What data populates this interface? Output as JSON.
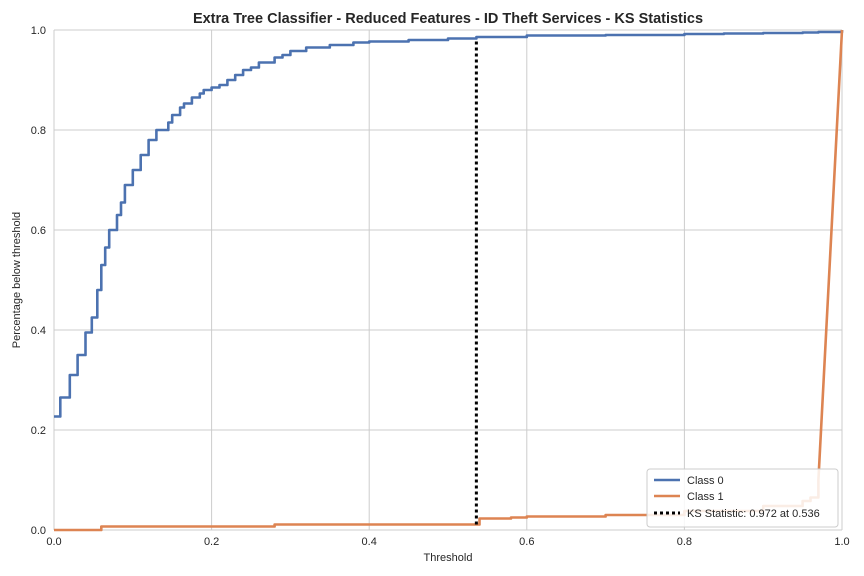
{
  "chart_data": {
    "type": "line",
    "title": "Extra Tree Classifier - Reduced Features - ID Theft Services - KS Statistics",
    "xlabel": "Threshold",
    "ylabel": "Percentage below threshold",
    "xlim": [
      0.0,
      1.0
    ],
    "ylim": [
      0.0,
      1.0
    ],
    "xticks": [
      "0.0",
      "0.2",
      "0.4",
      "0.6",
      "0.8",
      "1.0"
    ],
    "yticks": [
      "0.0",
      "0.2",
      "0.4",
      "0.6",
      "0.8",
      "1.0"
    ],
    "grid": true,
    "legend_position": "bottom-right",
    "series": [
      {
        "name": "Class 0",
        "color": "#4c72b0",
        "style": "step",
        "x": [
          0.0,
          0.008,
          0.012,
          0.02,
          0.03,
          0.04,
          0.048,
          0.055,
          0.06,
          0.065,
          0.07,
          0.08,
          0.085,
          0.09,
          0.1,
          0.105,
          0.11,
          0.12,
          0.13,
          0.14,
          0.145,
          0.15,
          0.16,
          0.165,
          0.175,
          0.185,
          0.19,
          0.2,
          0.21,
          0.22,
          0.23,
          0.24,
          0.25,
          0.26,
          0.28,
          0.29,
          0.3,
          0.32,
          0.35,
          0.38,
          0.4,
          0.45,
          0.5,
          0.536,
          0.6,
          0.7,
          0.8,
          0.85,
          0.9,
          0.95,
          0.97,
          1.0
        ],
        "y": [
          0.227,
          0.265,
          0.265,
          0.31,
          0.35,
          0.395,
          0.425,
          0.48,
          0.53,
          0.565,
          0.6,
          0.63,
          0.655,
          0.69,
          0.72,
          0.72,
          0.75,
          0.78,
          0.8,
          0.8,
          0.815,
          0.83,
          0.845,
          0.853,
          0.865,
          0.873,
          0.88,
          0.885,
          0.89,
          0.9,
          0.91,
          0.92,
          0.925,
          0.935,
          0.945,
          0.95,
          0.958,
          0.965,
          0.97,
          0.975,
          0.977,
          0.98,
          0.983,
          0.986,
          0.989,
          0.99,
          0.992,
          0.993,
          0.994,
          0.995,
          0.996,
          1.0
        ]
      },
      {
        "name": "Class 1",
        "color": "#dd8452",
        "style": "step",
        "x": [
          0.0,
          0.06,
          0.28,
          0.536,
          0.54,
          0.58,
          0.6,
          0.7,
          0.8,
          0.9,
          0.95,
          0.96,
          0.97,
          1.0
        ],
        "y": [
          0.0,
          0.007,
          0.011,
          0.011,
          0.023,
          0.025,
          0.027,
          0.03,
          0.038,
          0.048,
          0.058,
          0.065,
          0.1,
          1.0
        ]
      }
    ],
    "ks_line": {
      "label": "KS Statistic: 0.972 at 0.536",
      "x": 0.536,
      "y_from": 0.011,
      "y_to": 0.983,
      "color": "#000000"
    }
  }
}
